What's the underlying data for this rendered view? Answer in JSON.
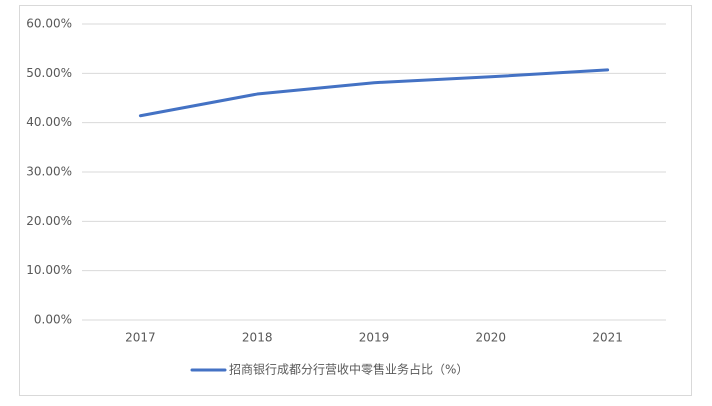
{
  "chart_data": {
    "type": "line",
    "categories": [
      "2017",
      "2018",
      "2019",
      "2020",
      "2021"
    ],
    "series": [
      {
        "name": "招商银行成都分行营收中零售业务占比（%）",
        "color": "#4472c4",
        "values": [
          41.4,
          45.8,
          48.1,
          49.3,
          50.7
        ]
      }
    ],
    "ylim": [
      0,
      60
    ],
    "yticks": [
      {
        "value": 0,
        "label": "0.00%"
      },
      {
        "value": 10,
        "label": "10.00%"
      },
      {
        "value": 20,
        "label": "20.00%"
      },
      {
        "value": 30,
        "label": "30.00%"
      },
      {
        "value": 40,
        "label": "40.00%"
      },
      {
        "value": 50,
        "label": "50.00%"
      },
      {
        "value": 60,
        "label": "60.00%"
      }
    ],
    "grid": true,
    "legend": "bottom"
  }
}
